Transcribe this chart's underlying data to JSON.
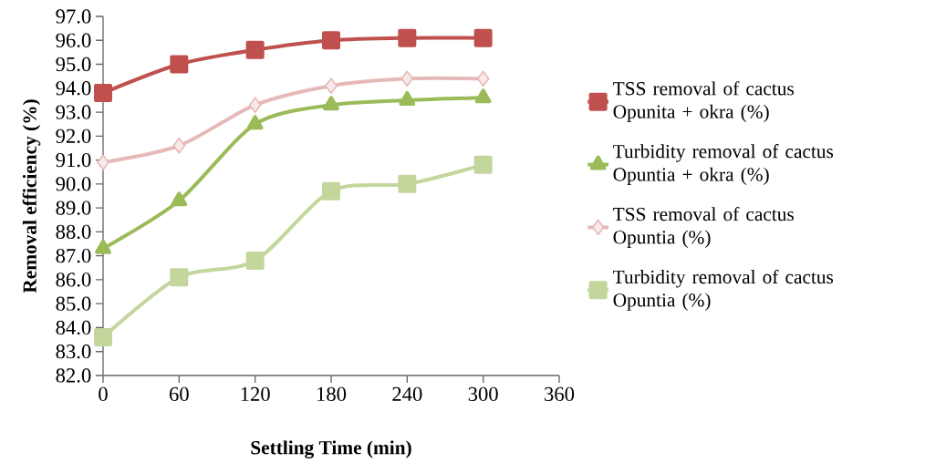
{
  "chart_data": {
    "type": "line",
    "xlabel": "Settling Time (min)",
    "ylabel": "Removal efficiency (%)",
    "x": [
      0,
      60,
      120,
      180,
      240,
      300
    ],
    "series": [
      {
        "name": "TSS removal of cactus Opunita + okra (%)",
        "color": "#c0504d",
        "marker": "square",
        "values": [
          93.8,
          95.0,
          95.6,
          96.0,
          96.1,
          96.1
        ]
      },
      {
        "name": "Turbidity removal of cactus Opuntia + okra (%)",
        "color": "#9bbb59",
        "marker": "triangle",
        "values": [
          87.3,
          89.3,
          92.5,
          93.3,
          93.5,
          93.6
        ]
      },
      {
        "name": "TSS removal of cactus Opuntia (%)",
        "color": "#e6b9b8",
        "marker": "diamond",
        "values": [
          90.9,
          91.6,
          93.3,
          94.1,
          94.4,
          94.4
        ]
      },
      {
        "name": "Turbidity removal of cactus Opuntia (%)",
        "color": "#c3d69b",
        "marker": "square",
        "values": [
          83.6,
          86.1,
          86.8,
          89.7,
          90.0,
          90.8
        ]
      }
    ],
    "xlim": [
      0,
      360
    ],
    "xticks": [
      0,
      60,
      120,
      180,
      240,
      300,
      360
    ],
    "ylim": [
      82,
      97
    ],
    "yticks": [
      {
        "value": 82,
        "label": "82.0"
      },
      {
        "value": 83,
        "label": "83.0"
      },
      {
        "value": 84,
        "label": "84.0"
      },
      {
        "value": 85,
        "label": "85.0"
      },
      {
        "value": 86,
        "label": "86.0"
      },
      {
        "value": 87,
        "label": "87.0"
      },
      {
        "value": 88,
        "label": "88.0"
      },
      {
        "value": 89,
        "label": "89.0"
      },
      {
        "value": 90,
        "label": "90.0"
      },
      {
        "value": 91,
        "label": "91.0"
      },
      {
        "value": 92,
        "label": "92.0"
      },
      {
        "value": 93,
        "label": "93.0"
      },
      {
        "value": 94,
        "label": "94.0"
      },
      {
        "value": 95,
        "label": "95.0"
      },
      {
        "value": 96,
        "label": "96.0"
      },
      {
        "value": 97,
        "label": "97.0"
      }
    ],
    "grid": false,
    "legend": "right",
    "line_style": "solid"
  }
}
